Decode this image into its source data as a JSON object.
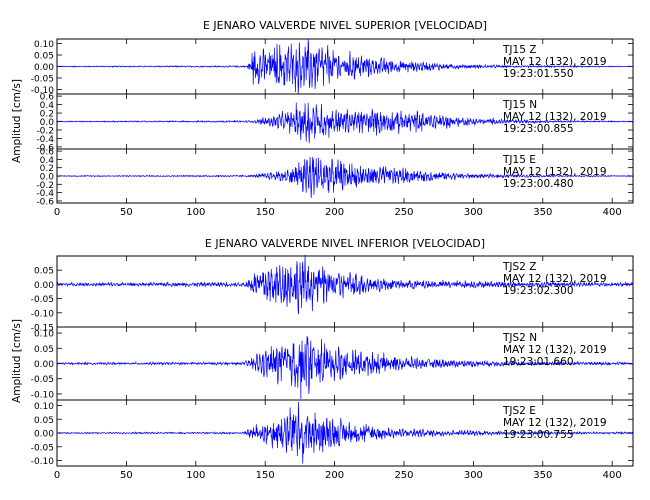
{
  "colors": {
    "trace": "#0000ff",
    "axis": "#000000",
    "background": "#ffffff"
  },
  "chart_data": [
    {
      "type": "line",
      "title": "E JENARO VALVERDE NIVEL SUPERIOR [VELOCIDAD]",
      "xlabel": "",
      "ylabel": "Amplitud [cm/s]",
      "xlim": [
        0,
        415
      ],
      "xticks": [
        "0",
        "50",
        "100",
        "150",
        "200",
        "250",
        "300",
        "350",
        "400"
      ],
      "xtick_values": [
        0,
        50,
        100,
        150,
        200,
        250,
        300,
        350,
        400
      ],
      "grid": false,
      "legend": "none",
      "traces": [
        {
          "station": "TJ15",
          "component": "Z",
          "date": "MAY 12 (132), 2019",
          "start_time": "19:23:01.550",
          "ylim": [
            -0.12,
            0.12
          ],
          "yticks": [
            "0.10",
            "0.05",
            "0.00",
            "-0.05",
            "-0.10"
          ],
          "ytick_values": [
            0.1,
            0.05,
            0.0,
            -0.05,
            -0.1
          ],
          "envelope": {
            "t": [
              0,
              137,
              140,
              150,
              160,
              170,
              175,
              180,
              185,
              190,
              200,
              215,
              230,
              250,
              270,
              300,
              330,
              360,
              415
            ],
            "amp": [
              0.002,
              0.003,
              0.06,
              0.075,
              0.085,
              0.09,
              0.095,
              0.1,
              0.09,
              0.085,
              0.07,
              0.05,
              0.035,
              0.025,
              0.015,
              0.008,
              0.004,
              0.003,
              0.002
            ]
          }
        },
        {
          "station": "TJ15",
          "component": "N",
          "date": "MAY 12 (132), 2019",
          "start_time": "19:23:00.855",
          "ylim": [
            -0.65,
            0.65
          ],
          "yticks": [
            "0.6",
            "0.4",
            "0.2",
            "0.0",
            "-0.2",
            "-0.4",
            "-0.6"
          ],
          "ytick_values": [
            0.6,
            0.4,
            0.2,
            0.0,
            -0.2,
            -0.4,
            -0.6
          ],
          "envelope": {
            "t": [
              0,
              140,
              150,
              165,
              175,
              180,
              185,
              195,
              210,
              230,
              250,
              270,
              300,
              330,
              360,
              415
            ],
            "amp": [
              0.01,
              0.02,
              0.1,
              0.2,
              0.4,
              0.6,
              0.45,
              0.3,
              0.25,
              0.27,
              0.25,
              0.18,
              0.08,
              0.04,
              0.02,
              0.01
            ]
          }
        },
        {
          "station": "TJ15",
          "component": "E",
          "date": "MAY 12 (132), 2019",
          "start_time": "19:23:00.480",
          "ylim": [
            -0.65,
            0.65
          ],
          "yticks": [
            "0.6",
            "0.4",
            "0.2",
            "0.0",
            "-0.2",
            "-0.4",
            "-0.6"
          ],
          "ytick_values": [
            0.6,
            0.4,
            0.2,
            0.0,
            -0.2,
            -0.4,
            -0.6
          ],
          "envelope": {
            "t": [
              0,
              140,
              150,
              165,
              175,
              182,
              190,
              200,
              215,
              235,
              255,
              275,
              300,
              330,
              360,
              415
            ],
            "amp": [
              0.01,
              0.02,
              0.06,
              0.15,
              0.35,
              0.55,
              0.45,
              0.35,
              0.25,
              0.22,
              0.15,
              0.1,
              0.05,
              0.03,
              0.02,
              0.01
            ]
          }
        }
      ]
    },
    {
      "type": "line",
      "title": "E JENARO VALVERDE NIVEL INFERIOR [VELOCIDAD]",
      "xlabel": "",
      "ylabel": "Amplitud [cm/s]",
      "xlim": [
        0,
        415
      ],
      "xticks": [
        "0",
        "50",
        "100",
        "150",
        "200",
        "250",
        "300",
        "350",
        "400"
      ],
      "xtick_values": [
        0,
        50,
        100,
        150,
        200,
        250,
        300,
        350,
        400
      ],
      "grid": false,
      "legend": "none",
      "traces": [
        {
          "station": "TJS2",
          "component": "Z",
          "date": "MAY 12 (132), 2019",
          "start_time": "19:23:02.300",
          "ylim": [
            -0.15,
            0.1
          ],
          "yticks": [
            "0.05",
            "0.00",
            "-0.05",
            "-0.10",
            "-0.15"
          ],
          "ytick_values": [
            0.05,
            0.0,
            -0.05,
            -0.1,
            -0.15
          ],
          "envelope": {
            "t": [
              0,
              135,
              140,
              150,
              160,
              170,
              175,
              180,
              185,
              195,
              210,
              230,
              250,
              280,
              320,
              360,
              415
            ],
            "amp": [
              0.005,
              0.007,
              0.03,
              0.06,
              0.07,
              0.075,
              0.09,
              0.08,
              0.07,
              0.06,
              0.04,
              0.025,
              0.015,
              0.012,
              0.01,
              0.008,
              0.006
            ]
          }
        },
        {
          "station": "TJS2",
          "component": "N",
          "date": "MAY 12 (132), 2019",
          "start_time": "19:23:01.660",
          "ylim": [
            -0.12,
            0.12
          ],
          "yticks": [
            "0.10",
            "0.05",
            "0.00",
            "-0.05",
            "-0.10"
          ],
          "ytick_values": [
            0.1,
            0.05,
            0.0,
            -0.05,
            -0.1
          ],
          "envelope": {
            "t": [
              0,
              135,
              140,
              150,
              160,
              170,
              175,
              180,
              185,
              195,
              210,
              230,
              250,
              280,
              320,
              360,
              415
            ],
            "amp": [
              0.003,
              0.004,
              0.02,
              0.04,
              0.06,
              0.085,
              0.095,
              0.1,
              0.08,
              0.06,
              0.04,
              0.03,
              0.02,
              0.012,
              0.008,
              0.005,
              0.004
            ]
          }
        },
        {
          "station": "TJS2",
          "component": "E",
          "date": "MAY 12 (132), 2019",
          "start_time": "19:23:00.755",
          "ylim": [
            -0.12,
            0.12
          ],
          "yticks": [
            "0.10",
            "0.05",
            "0.00",
            "-0.05",
            "-0.10"
          ],
          "ytick_values": [
            0.1,
            0.05,
            0.0,
            -0.05,
            -0.1
          ],
          "envelope": {
            "t": [
              0,
              135,
              140,
              150,
              160,
              170,
              175,
              180,
              185,
              195,
              210,
              230,
              250,
              280,
              320,
              360,
              415
            ],
            "amp": [
              0.002,
              0.003,
              0.02,
              0.04,
              0.06,
              0.085,
              0.1,
              0.09,
              0.075,
              0.055,
              0.04,
              0.025,
              0.015,
              0.01,
              0.006,
              0.004,
              0.003
            ]
          }
        }
      ]
    }
  ]
}
